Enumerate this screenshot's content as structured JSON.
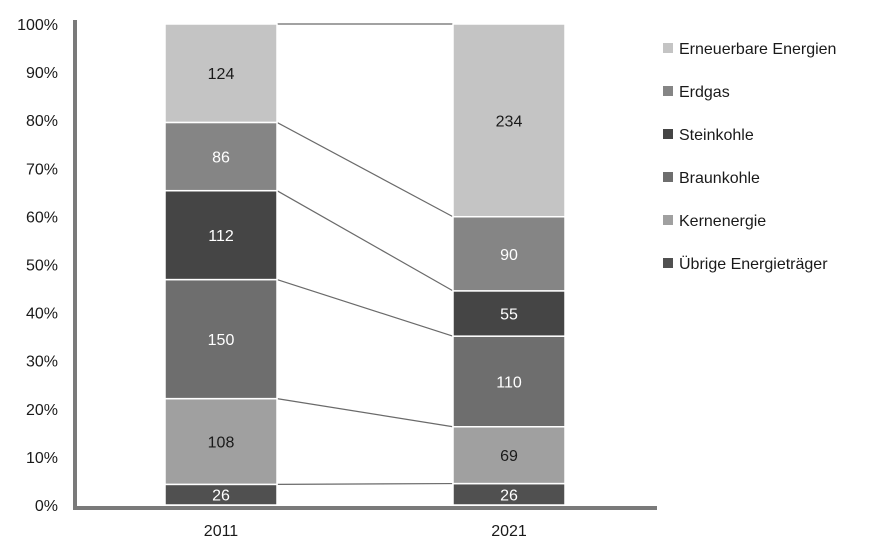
{
  "chart_data": {
    "type": "bar",
    "stacked": true,
    "normalized": true,
    "categories": [
      "2011",
      "2021"
    ],
    "y_tick_labels": [
      "0%",
      "10%",
      "20%",
      "30%",
      "40%",
      "50%",
      "60%",
      "70%",
      "80%",
      "90%",
      "100%"
    ],
    "ylim": [
      0,
      100
    ],
    "grid": false,
    "legend_position": "right",
    "series": [
      {
        "name": "Übrige Energieträger",
        "values": [
          26,
          26
        ],
        "color": "#505050",
        "label_color": "#ffffff"
      },
      {
        "name": "Kernenergie",
        "values": [
          108,
          69
        ],
        "color": "#a0a0a0",
        "label_color": "#1a1a1a"
      },
      {
        "name": "Braunkohle",
        "values": [
          150,
          110
        ],
        "color": "#6e6e6e",
        "label_color": "#ffffff"
      },
      {
        "name": "Steinkohle",
        "values": [
          112,
          55
        ],
        "color": "#454545",
        "label_color": "#ffffff"
      },
      {
        "name": "Erdgas",
        "values": [
          86,
          90
        ],
        "color": "#858585",
        "label_color": "#ffffff"
      },
      {
        "name": "Erneuerbare Energien",
        "values": [
          124,
          234
        ],
        "color": "#c4c4c4",
        "label_color": "#1a1a1a"
      }
    ],
    "colors": {
      "axis": "#7a7a7a",
      "connector": "#6a6a6a",
      "segment_border": "#ffffff"
    }
  }
}
